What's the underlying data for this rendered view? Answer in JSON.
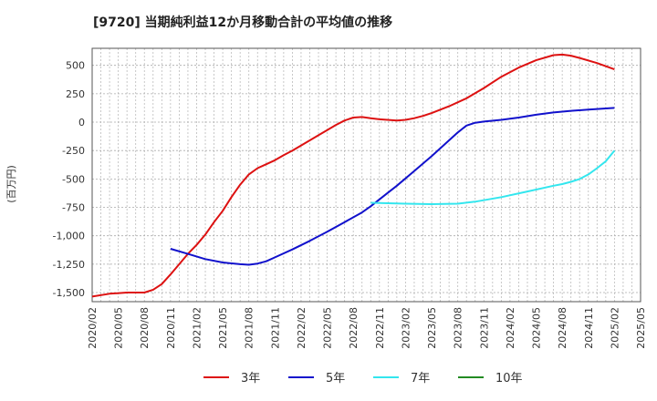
{
  "chart_data": {
    "type": "line",
    "title": "[9720]  当期純利益12か月移動合計の平均値の推移",
    "ylabel": "(百万円)",
    "xlabel": "",
    "ylim": [
      -1580,
      650
    ],
    "yticks": [
      500,
      250,
      0,
      -250,
      -500,
      -750,
      -1000,
      -1250,
      -1500
    ],
    "ytick_labels": [
      "500",
      "250",
      "0",
      "-250",
      "-500",
      "-750",
      "-1,000",
      "-1,250",
      "-1,500"
    ],
    "xticks": [
      "2020/02",
      "2020/05",
      "2020/08",
      "2020/11",
      "2021/02",
      "2021/05",
      "2021/08",
      "2021/11",
      "2022/02",
      "2022/05",
      "2022/08",
      "2022/11",
      "2023/02",
      "2023/05",
      "2023/08",
      "2023/11",
      "2024/02",
      "2024/05",
      "2024/08",
      "2024/11",
      "2025/02",
      "2025/05"
    ],
    "grid": true,
    "legend_position": "bottom",
    "series": [
      {
        "name": "3年",
        "color": "#dd1111",
        "x": [
          "2020/02",
          "2020/04",
          "2020/06",
          "2020/08",
          "2020/09",
          "2020/10",
          "2020/11",
          "2020/12",
          "2021/01",
          "2021/02",
          "2021/03",
          "2021/04",
          "2021/05",
          "2021/06",
          "2021/07",
          "2021/08",
          "2021/09",
          "2021/10",
          "2021/11",
          "2021/12",
          "2022/01",
          "2022/02",
          "2022/03",
          "2022/04",
          "2022/05",
          "2022/06",
          "2022/07",
          "2022/08",
          "2022/09",
          "2022/10",
          "2022/11",
          "2023/01",
          "2023/02",
          "2023/03",
          "2023/04",
          "2023/05",
          "2023/07",
          "2023/09",
          "2023/11",
          "2024/01",
          "2024/03",
          "2024/05",
          "2024/07",
          "2024/08",
          "2024/09",
          "2024/10",
          "2024/12",
          "2025/02"
        ],
        "values": [
          -1535,
          -1510,
          -1500,
          -1500,
          -1475,
          -1425,
          -1340,
          -1250,
          -1160,
          -1080,
          -990,
          -880,
          -780,
          -660,
          -550,
          -460,
          -405,
          -370,
          -335,
          -290,
          -250,
          -205,
          -160,
          -115,
          -70,
          -25,
          15,
          40,
          45,
          35,
          25,
          15,
          20,
          35,
          55,
          80,
          140,
          210,
          300,
          400,
          480,
          545,
          590,
          595,
          585,
          565,
          520,
          465
        ]
      },
      {
        "name": "5年",
        "color": "#1111cc",
        "x": [
          "2020/11",
          "2021/01",
          "2021/03",
          "2021/05",
          "2021/07",
          "2021/08",
          "2021/09",
          "2021/10",
          "2021/11",
          "2022/01",
          "2022/03",
          "2022/05",
          "2022/07",
          "2022/09",
          "2022/10",
          "2022/11",
          "2022/12",
          "2023/01",
          "2023/03",
          "2023/05",
          "2023/07",
          "2023/08",
          "2023/09",
          "2023/10",
          "2023/11",
          "2024/01",
          "2024/03",
          "2024/05",
          "2024/07",
          "2024/09",
          "2024/11",
          "2025/02"
        ],
        "values": [
          -1115,
          -1160,
          -1205,
          -1235,
          -1250,
          -1255,
          -1245,
          -1225,
          -1190,
          -1120,
          -1045,
          -965,
          -880,
          -795,
          -740,
          -680,
          -620,
          -560,
          -430,
          -300,
          -160,
          -90,
          -30,
          -5,
          5,
          20,
          40,
          65,
          85,
          100,
          110,
          125
        ]
      },
      {
        "name": "7年",
        "color": "#33e6ee",
        "x": [
          "2022/10",
          "2022/11",
          "2023/02",
          "2023/05",
          "2023/08",
          "2023/10",
          "2024/01",
          "2024/04",
          "2024/07",
          "2024/08",
          "2024/09",
          "2024/10",
          "2024/11",
          "2024/12",
          "2025/01",
          "2025/02"
        ],
        "values": [
          -710,
          -712,
          -718,
          -722,
          -718,
          -700,
          -660,
          -610,
          -560,
          -545,
          -525,
          -500,
          -460,
          -405,
          -345,
          -250
        ]
      },
      {
        "name": "10年",
        "color": "#228b22",
        "x": [],
        "values": []
      }
    ]
  }
}
